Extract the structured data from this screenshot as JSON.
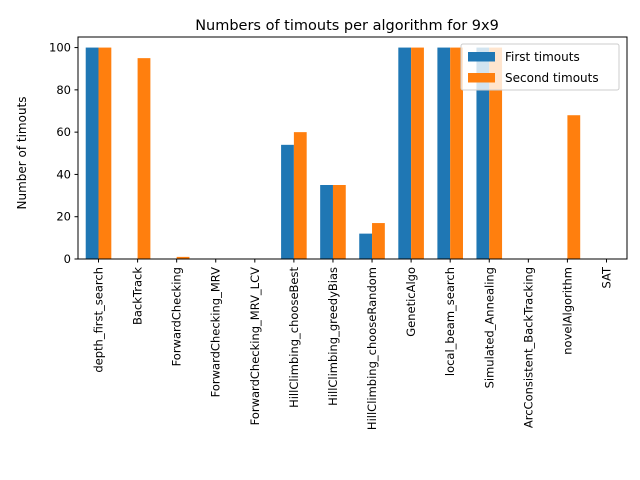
{
  "chart_data": {
    "type": "bar",
    "title": "Numbers of timouts per algorithm for 9x9",
    "xlabel": "",
    "ylabel": "Number of timouts",
    "ylim": [
      0,
      105
    ],
    "yticks": [
      0,
      20,
      40,
      60,
      80,
      100
    ],
    "grid": false,
    "legend": "top-right",
    "categories": [
      "depth_first_search",
      "BackTrack",
      "ForwardChecking",
      "ForwardChecking_MRV",
      "ForwardChecking_MRV_LCV",
      "HillClimbing_chooseBest",
      "HillClimbing_greedyBias",
      "HillClimbing_chooseRandom",
      "GeneticAlgo",
      "local_beam_search",
      "Simulated_Annealing",
      "ArcConsistent_BackTracking",
      "novelAlgorithm",
      "SAT"
    ],
    "series": [
      {
        "name": "First timouts",
        "color": "#1f77b4",
        "values": [
          100,
          0,
          0,
          0,
          0,
          54,
          35,
          12,
          100,
          100,
          100,
          0,
          0,
          0
        ]
      },
      {
        "name": "Second timouts",
        "color": "#ff7f0e",
        "values": [
          100,
          95,
          1,
          0,
          0,
          60,
          35,
          17,
          100,
          100,
          100,
          0,
          68,
          0
        ]
      }
    ]
  }
}
